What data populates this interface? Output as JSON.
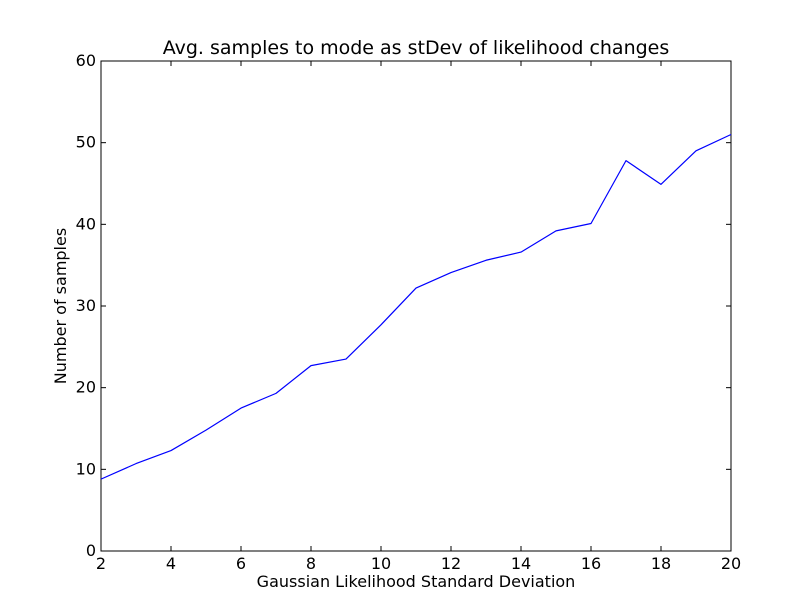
{
  "chart_data": {
    "type": "line",
    "title": "Avg. samples to mode as stDev of likelihood changes",
    "xlabel": "Gaussian Likelihood Standard Deviation",
    "ylabel": "Number of samples",
    "xlim": [
      2,
      20
    ],
    "ylim": [
      0,
      60
    ],
    "xticks": [
      2,
      4,
      6,
      8,
      10,
      12,
      14,
      16,
      18,
      20
    ],
    "yticks": [
      0,
      10,
      20,
      30,
      40,
      50,
      60
    ],
    "grid": false,
    "series": [
      {
        "color": "#0000ff",
        "x": [
          2,
          3,
          4,
          5,
          6,
          7,
          8,
          9,
          10,
          11,
          12,
          13,
          14,
          15,
          16,
          17,
          18,
          19,
          20
        ],
        "values": [
          8.8,
          10.7,
          12.3,
          14.8,
          17.5,
          19.3,
          22.7,
          23.5,
          27.7,
          32.2,
          34.1,
          35.6,
          36.6,
          39.2,
          40.1,
          47.8,
          44.9,
          49.0,
          51.0
        ]
      }
    ]
  }
}
